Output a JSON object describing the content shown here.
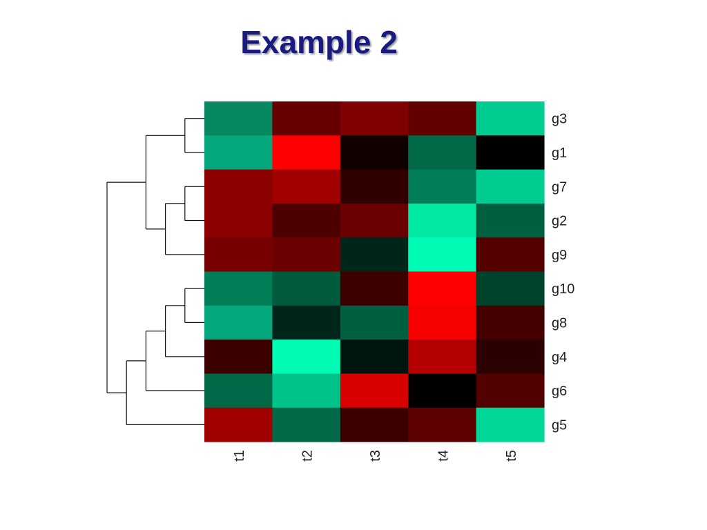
{
  "slide": {
    "title": "Example 2"
  },
  "chart_data": {
    "type": "heatmap",
    "title": "",
    "rows": [
      "g3",
      "g1",
      "g7",
      "g2",
      "g9",
      "g10",
      "g8",
      "g4",
      "g6",
      "g5"
    ],
    "columns": [
      "t1",
      "t2",
      "t3",
      "t4",
      "t5"
    ],
    "cell_colors": [
      [
        "#088860",
        "#660000",
        "#7e0000",
        "#600000",
        "#00cc92"
      ],
      [
        "#05a87c",
        "#ff0000",
        "#100000",
        "#016948",
        "#000000"
      ],
      [
        "#8c0000",
        "#a00000",
        "#300000",
        "#017d58",
        "#00cc92"
      ],
      [
        "#8c0000",
        "#4c0000",
        "#6a0000",
        "#00e8a2",
        "#005f40"
      ],
      [
        "#760000",
        "#6c0000",
        "#00261a",
        "#00fcb4",
        "#540000"
      ],
      [
        "#017d58",
        "#005b3c",
        "#3c0000",
        "#ff0000",
        "#00432c"
      ],
      [
        "#05a87c",
        "#00251a",
        "#005f40",
        "#f70000",
        "#440000"
      ],
      [
        "#3a0000",
        "#00fcb4",
        "#001510",
        "#b40000",
        "#2c0000"
      ],
      [
        "#016948",
        "#00c38c",
        "#d90000",
        "#000000",
        "#520000"
      ],
      [
        "#a00000",
        "#016948",
        "#3c0000",
        "#5c0000",
        "#00d698"
      ]
    ],
    "color_scale": {
      "low": "#00ffb4",
      "mid": "#000000",
      "high": "#ff0000"
    },
    "row_dendrogram": "(((g3,g1),((g7,g2),g9)),((((g10,g8),g4),g6),g5))",
    "legend": "none"
  }
}
